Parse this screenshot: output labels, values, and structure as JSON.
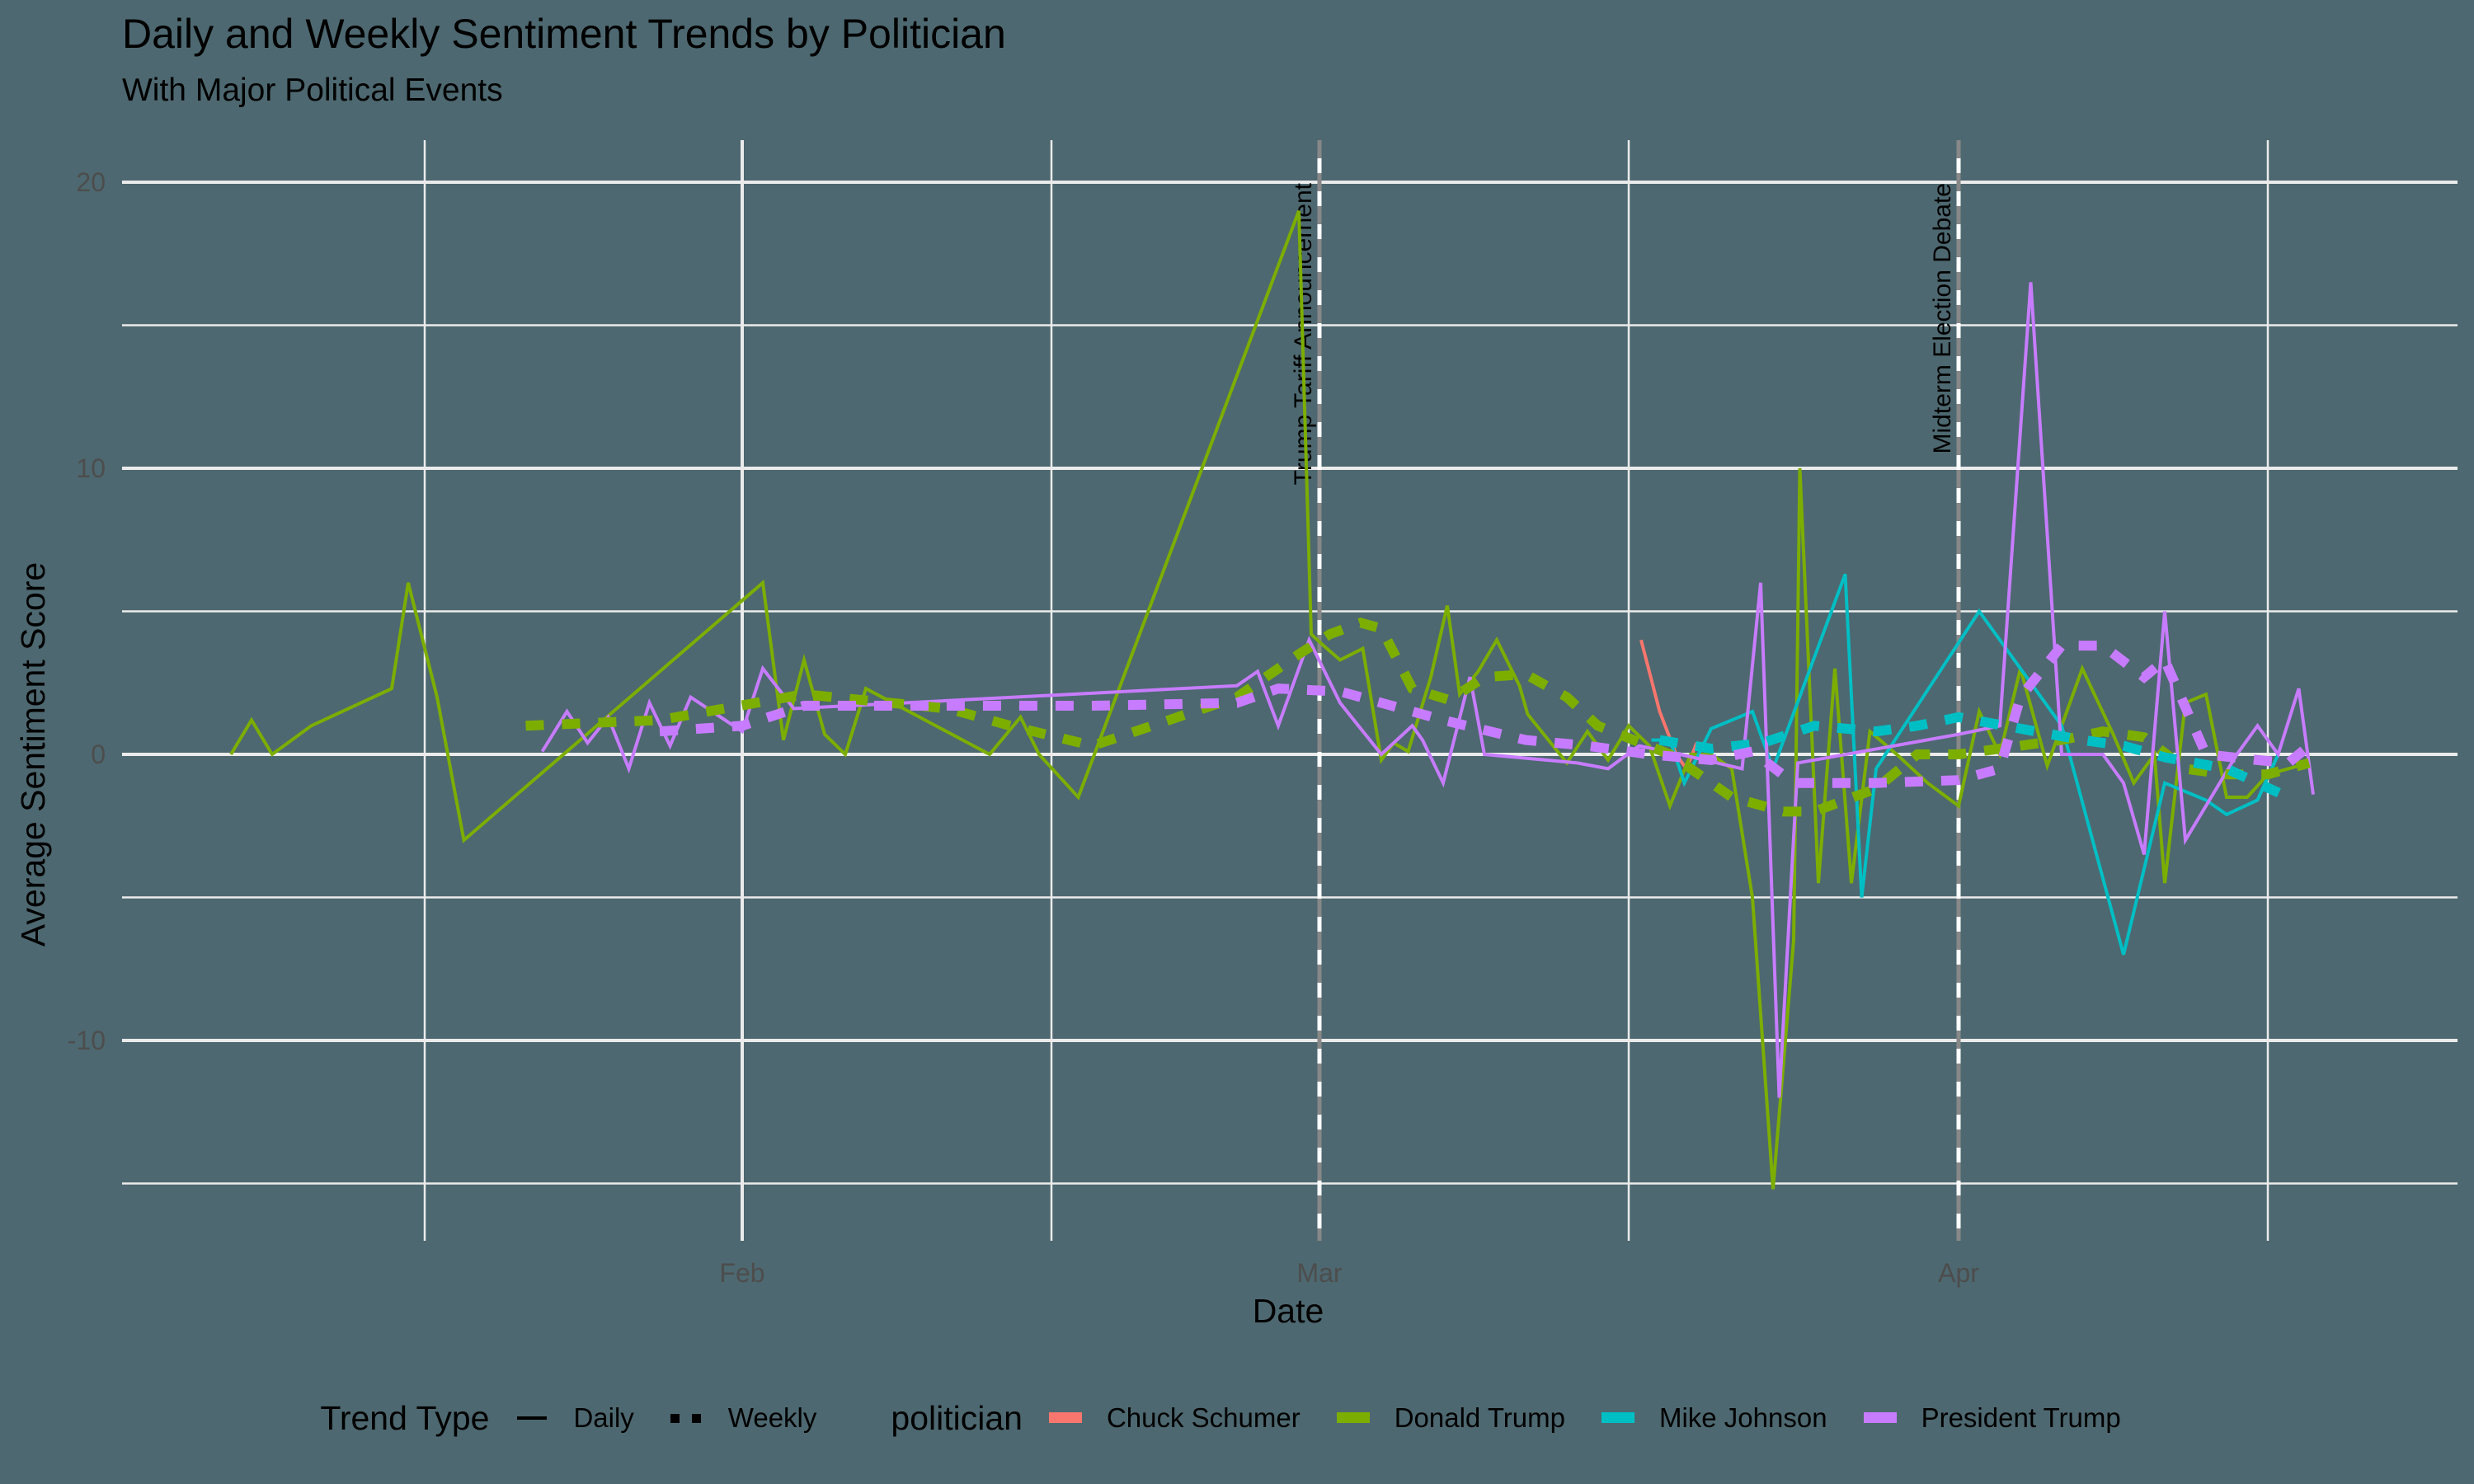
{
  "chart_data": {
    "type": "line",
    "title": "Daily and Weekly Sentiment Trends by Politician",
    "subtitle": "With Major Political Events",
    "xlabel": "Date",
    "ylabel": "Average Sentiment Score",
    "x_ticks": [
      "Feb",
      "Mar",
      "Apr"
    ],
    "y_ticks": [
      -10,
      0,
      10,
      20
    ],
    "ylim": [
      -16.5,
      20.5
    ],
    "grid": true,
    "legend_position": "bottom",
    "x_unit": "day of year (Jan 1 = 0)",
    "events": [
      {
        "day": 59,
        "label": "Trump Tariff Announcement"
      },
      {
        "day": 90,
        "label": "Midterm Election Debate"
      }
    ],
    "legend": {
      "trend_type_title": "Trend Type",
      "trend_types": [
        {
          "label": "Daily",
          "style": "solid"
        },
        {
          "label": "Weekly",
          "style": "dashed"
        }
      ],
      "politician_title": "politician"
    },
    "series": [
      {
        "name": "Chuck Schumer",
        "color": "#F8766D",
        "daily": [
          [
            74.6,
            4.0
          ],
          [
            75.5,
            1.5
          ],
          [
            76.3,
            0.0
          ],
          [
            76.8,
            -0.5
          ],
          [
            77.3,
            0.4
          ]
        ],
        "weekly": []
      },
      {
        "name": "Donald Trump",
        "color": "#7CAE00",
        "daily": [
          [
            6.2,
            0.0
          ],
          [
            7.2,
            1.2
          ],
          [
            8.2,
            0.0
          ],
          [
            10.1,
            1.0
          ],
          [
            14.0,
            2.3
          ],
          [
            14.8,
            6.0
          ],
          [
            16.2,
            2.0
          ],
          [
            17.5,
            -3.0
          ],
          [
            32.0,
            6.0
          ],
          [
            33.0,
            0.5
          ],
          [
            34.0,
            3.3
          ],
          [
            35.0,
            0.7
          ],
          [
            36.0,
            0.0
          ],
          [
            37.0,
            2.3
          ],
          [
            43.0,
            0.0
          ],
          [
            44.5,
            1.3
          ],
          [
            45.4,
            0.0
          ],
          [
            47.3,
            -1.5
          ],
          [
            58.0,
            19.0
          ],
          [
            58.6,
            4.2
          ],
          [
            59.2,
            3.8
          ],
          [
            60.0,
            3.3
          ],
          [
            61.1,
            3.7
          ],
          [
            62.0,
            -0.2
          ],
          [
            62.6,
            0.4
          ],
          [
            63.3,
            0.1
          ],
          [
            64.4,
            2.7
          ],
          [
            65.2,
            5.2
          ],
          [
            65.8,
            2.1
          ],
          [
            66.7,
            2.9
          ],
          [
            67.6,
            4.0
          ],
          [
            68.7,
            2.4
          ],
          [
            69.1,
            1.4
          ],
          [
            71.0,
            -0.3
          ],
          [
            72.0,
            0.8
          ],
          [
            73.0,
            -0.2
          ],
          [
            74.0,
            1.0
          ],
          [
            75.0,
            0.3
          ],
          [
            76.0,
            -1.8
          ],
          [
            77.0,
            0.0
          ],
          [
            78.0,
            0.0
          ],
          [
            79.0,
            -0.5
          ],
          [
            80.0,
            -5.0
          ],
          [
            81.0,
            -15.2
          ],
          [
            82.0,
            -6.5
          ],
          [
            82.3,
            10.0
          ],
          [
            83.2,
            -4.5
          ],
          [
            84.0,
            3.0
          ],
          [
            84.8,
            -4.5
          ],
          [
            85.7,
            0.8
          ],
          [
            87.0,
            0.0
          ],
          [
            88.5,
            -1.0
          ],
          [
            90.0,
            -1.8
          ],
          [
            91.0,
            1.5
          ],
          [
            92.0,
            0.0
          ],
          [
            93.0,
            3.0
          ],
          [
            94.3,
            -0.4
          ],
          [
            96.0,
            3.0
          ],
          [
            97.5,
            0.7
          ],
          [
            98.5,
            -1.0
          ],
          [
            99.5,
            0.0
          ],
          [
            100.0,
            -4.5
          ],
          [
            101.0,
            1.8
          ],
          [
            102.0,
            2.1
          ],
          [
            103.0,
            -1.5
          ],
          [
            104.0,
            -1.5
          ],
          [
            105.0,
            -0.7
          ],
          [
            106.0,
            -0.5
          ],
          [
            107.0,
            -0.3
          ]
        ],
        "weekly": [
          [
            20.5,
            1.0
          ],
          [
            27.0,
            1.2
          ],
          [
            34.0,
            2.1
          ],
          [
            41.0,
            1.6
          ],
          [
            44.0,
            1.0
          ],
          [
            48.0,
            0.3
          ],
          [
            55.0,
            2.0
          ],
          [
            58.0,
            3.5
          ],
          [
            59.5,
            4.2
          ],
          [
            61.0,
            4.6
          ],
          [
            62.0,
            4.4
          ],
          [
            63.5,
            2.3
          ],
          [
            65.3,
            1.9
          ],
          [
            67.0,
            2.7
          ],
          [
            69.0,
            2.8
          ],
          [
            71.0,
            2.0
          ],
          [
            72.5,
            1.0
          ],
          [
            76.0,
            0.0
          ],
          [
            79.0,
            -1.5
          ],
          [
            81.5,
            -2.0
          ],
          [
            83.0,
            -2.0
          ],
          [
            86.0,
            -1.2
          ],
          [
            88.0,
            0.0
          ],
          [
            90.0,
            0.0
          ],
          [
            93.0,
            0.3
          ],
          [
            95.0,
            0.5
          ],
          [
            97.0,
            0.8
          ],
          [
            99.0,
            0.6
          ],
          [
            101.0,
            -0.5
          ],
          [
            103.0,
            -0.7
          ],
          [
            105.0,
            -0.7
          ],
          [
            107.0,
            -0.3
          ]
        ]
      },
      {
        "name": "Mike Johnson",
        "color": "#00BFC4",
        "daily": [
          [
            75.1,
            0.5
          ],
          [
            76.0,
            0.5
          ],
          [
            76.7,
            -1.0
          ],
          [
            78.0,
            0.9
          ],
          [
            80.0,
            1.5
          ],
          [
            81.0,
            -0.5
          ],
          [
            84.5,
            6.3
          ],
          [
            85.3,
            -5.0
          ],
          [
            86.0,
            -0.5
          ],
          [
            91.0,
            5.0
          ],
          [
            95.0,
            1.0
          ],
          [
            98.0,
            -7.0
          ],
          [
            100.0,
            -1.0
          ],
          [
            102.0,
            -1.6
          ],
          [
            103.0,
            -2.1
          ],
          [
            104.5,
            -1.6
          ],
          [
            105.5,
            0.0
          ]
        ],
        "weekly": [
          [
            75.5,
            0.5
          ],
          [
            78.0,
            0.2
          ],
          [
            80.5,
            0.4
          ],
          [
            83.0,
            1.0
          ],
          [
            86.0,
            0.8
          ],
          [
            88.0,
            1.0
          ],
          [
            90.0,
            1.3
          ],
          [
            93.0,
            0.9
          ],
          [
            96.0,
            0.5
          ],
          [
            98.0,
            0.3
          ],
          [
            100.0,
            -0.1
          ],
          [
            103.0,
            -0.5
          ],
          [
            106.0,
            -1.5
          ]
        ]
      },
      {
        "name": "President Trump",
        "color": "#C77CFF",
        "daily": [
          [
            21.3,
            0.1
          ],
          [
            22.5,
            1.5
          ],
          [
            23.5,
            0.4
          ],
          [
            24.5,
            1.3
          ],
          [
            25.5,
            -0.5
          ],
          [
            26.5,
            1.8
          ],
          [
            27.5,
            0.3
          ],
          [
            28.5,
            2.0
          ],
          [
            31.0,
            0.8
          ],
          [
            32.0,
            3.0
          ],
          [
            33.5,
            1.6
          ],
          [
            55.0,
            2.4
          ],
          [
            56.0,
            2.9
          ],
          [
            57.0,
            1.0
          ],
          [
            58.5,
            4.0
          ],
          [
            60.0,
            1.8
          ],
          [
            62.0,
            0.0
          ],
          [
            63.5,
            1.0
          ],
          [
            64.0,
            0.5
          ],
          [
            65.0,
            -1.0
          ],
          [
            66.3,
            2.7
          ],
          [
            67.0,
            0.0
          ],
          [
            71.5,
            -0.3
          ],
          [
            73.0,
            -0.5
          ],
          [
            74.5,
            0.3
          ],
          [
            76.5,
            0.0
          ],
          [
            79.5,
            -0.5
          ],
          [
            80.4,
            6.0
          ],
          [
            81.3,
            -12.0
          ],
          [
            82.2,
            -0.3
          ],
          [
            90.0,
            0.7
          ],
          [
            92.0,
            1.0
          ],
          [
            93.5,
            16.5
          ],
          [
            95.0,
            0.0
          ],
          [
            97.0,
            0.0
          ],
          [
            98.0,
            -1.0
          ],
          [
            99.0,
            -3.5
          ],
          [
            100.0,
            5.0
          ],
          [
            101.0,
            -3.0
          ],
          [
            102.5,
            -1.2
          ],
          [
            103.5,
            0.0
          ],
          [
            104.5,
            1.0
          ],
          [
            105.5,
            0.0
          ],
          [
            106.5,
            2.3
          ],
          [
            107.2,
            -1.4
          ]
        ],
        "weekly": [
          [
            27.0,
            0.8
          ],
          [
            31.0,
            1.0
          ],
          [
            34.0,
            1.7
          ],
          [
            41.0,
            1.7
          ],
          [
            48.0,
            1.7
          ],
          [
            55.0,
            1.8
          ],
          [
            57.0,
            2.3
          ],
          [
            60.0,
            2.2
          ],
          [
            62.0,
            1.8
          ],
          [
            65.0,
            1.2
          ],
          [
            69.0,
            0.5
          ],
          [
            72.0,
            0.3
          ],
          [
            75.0,
            0.0
          ],
          [
            78.0,
            -0.2
          ],
          [
            80.0,
            0.1
          ],
          [
            82.0,
            -1.0
          ],
          [
            86.0,
            -1.0
          ],
          [
            90.0,
            -0.9
          ],
          [
            92.0,
            -0.5
          ],
          [
            93.0,
            2.0
          ],
          [
            95.0,
            3.8
          ],
          [
            97.0,
            3.8
          ],
          [
            99.0,
            2.7
          ],
          [
            100.0,
            3.3
          ],
          [
            102.0,
            0.0
          ],
          [
            104.5,
            -0.2
          ],
          [
            106.0,
            -0.3
          ],
          [
            107.0,
            0.3
          ]
        ]
      }
    ]
  },
  "labels": {
    "title": "Daily and Weekly Sentiment Trends by Politician",
    "subtitle": "With Major Political Events",
    "xlabel": "Date",
    "ylabel": "Average Sentiment Score",
    "trend_type_title": "Trend Type",
    "daily": "Daily",
    "weekly": "Weekly",
    "politician_title": "politician",
    "politicians": [
      "Chuck Schumer",
      "Donald Trump",
      "Mike Johnson",
      "President Trump"
    ]
  },
  "colors": {
    "background": "#4d6870",
    "grid": "#ebebeb",
    "Chuck Schumer": "#F8766D",
    "Donald Trump": "#7CAE00",
    "Mike Johnson": "#00BFC4",
    "President Trump": "#C77CFF"
  }
}
